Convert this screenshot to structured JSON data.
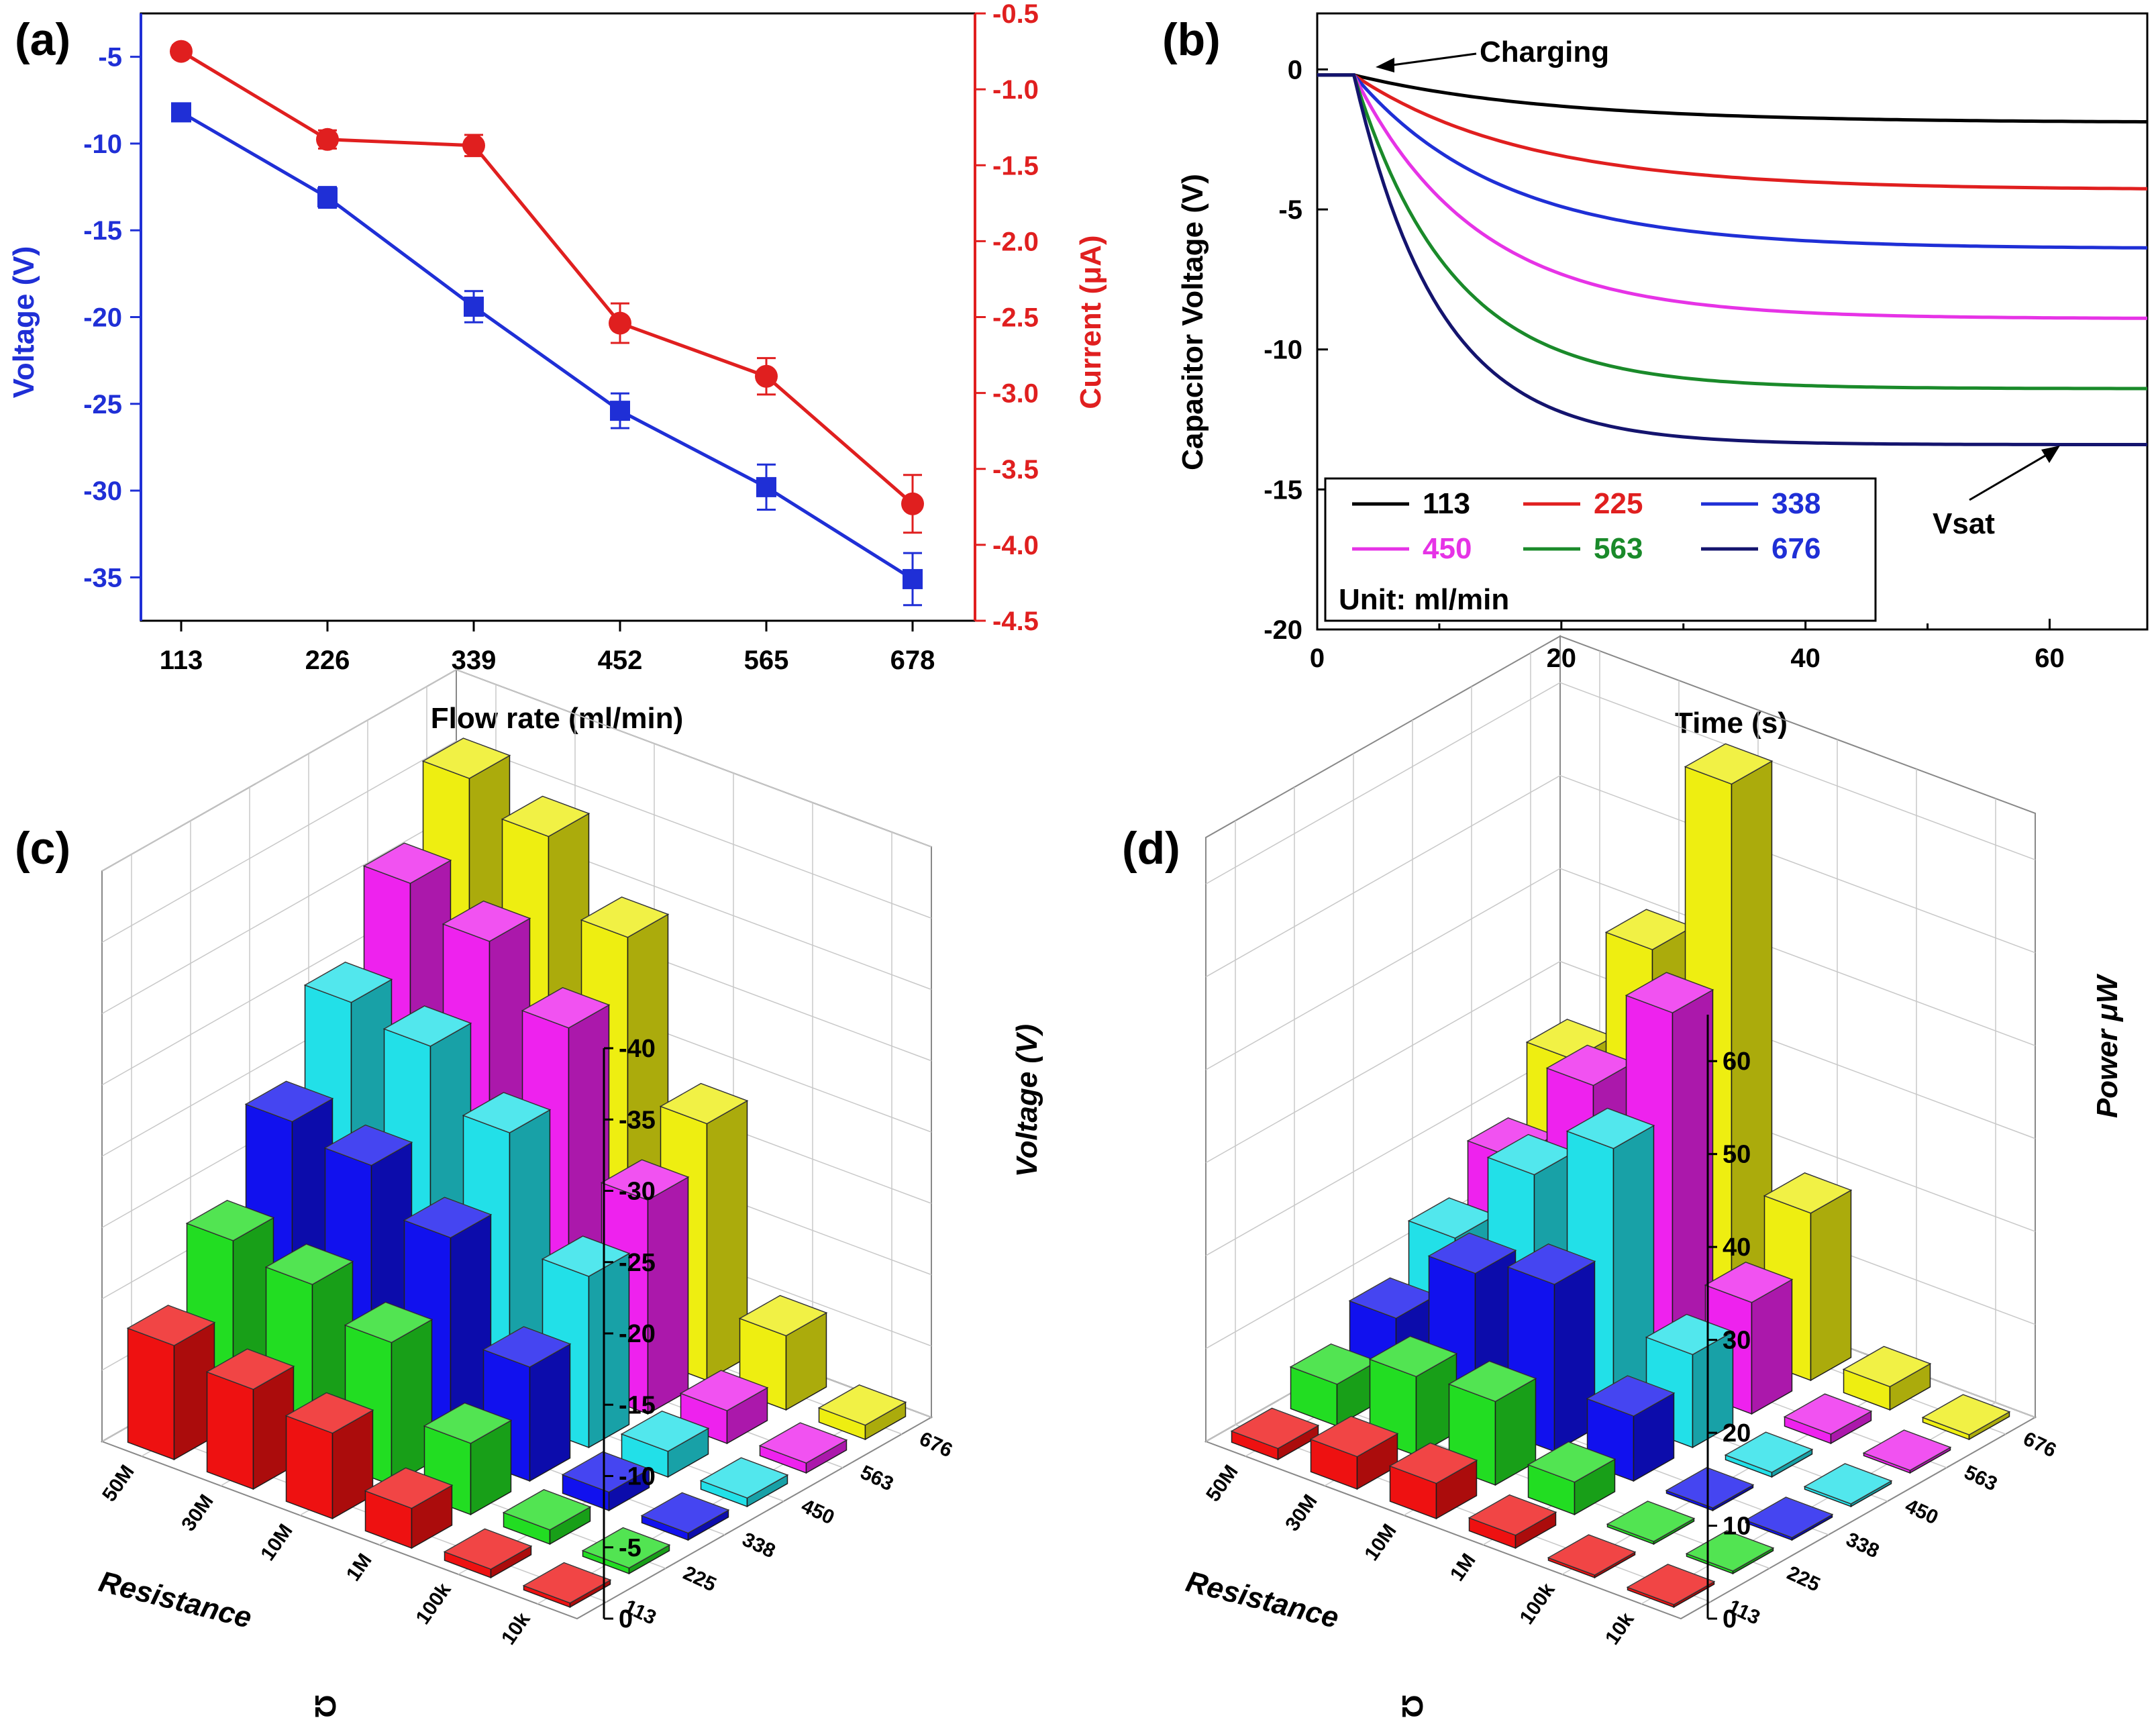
{
  "panels": {
    "a": {
      "label": "(a)",
      "chart_data": {
        "type": "line",
        "categories": [
          "113",
          "226",
          "339",
          "452",
          "565",
          "678"
        ],
        "xlabel": "Flow rate (ml/min)",
        "ylabel": "Voltage (V)",
        "y2label": "Current (μA)",
        "ylim": [
          -37.5,
          -2.5
        ],
        "y2lim": [
          -4.5,
          -0.5
        ],
        "yticks": [
          -5,
          -10,
          -15,
          -20,
          -25,
          -30,
          -35
        ],
        "y2ticks": [
          -0.5,
          -1.0,
          -1.5,
          -2.0,
          -2.5,
          -3.0,
          -3.5,
          -4.0,
          -4.5
        ],
        "series": [
          {
            "axis": "left",
            "marker": "square",
            "color": "#1f2fd6",
            "values": [
              -8.2,
              -13.1,
              -19.4,
              -25.4,
              -29.8,
              -35.1
            ],
            "errors": [
              0.3,
              0.6,
              0.9,
              1.0,
              1.3,
              1.5
            ]
          },
          {
            "axis": "right",
            "marker": "circle",
            "color": "#e01f1f",
            "values": [
              -0.75,
              -1.33,
              -1.37,
              -2.54,
              -2.89,
              -3.73
            ],
            "errors": [
              0.04,
              0.06,
              0.07,
              0.13,
              0.12,
              0.19
            ]
          }
        ]
      }
    },
    "b": {
      "label": "(b)",
      "chart_data": {
        "type": "line",
        "xlabel": "Time (s)",
        "ylabel": "Capacitor Voltage (V)",
        "xlim": [
          0,
          68
        ],
        "ylim": [
          -20,
          2
        ],
        "xticks": [
          0,
          20,
          40,
          60
        ],
        "yticks": [
          0,
          -5,
          -10,
          -15,
          -20
        ],
        "charge_start": 3,
        "series": [
          {
            "name": "113",
            "color": "#000000",
            "vsat": -1.9,
            "tau": 16
          },
          {
            "name": "225",
            "color": "#e01f1f",
            "vsat": -4.3,
            "tau": 14
          },
          {
            "name": "338",
            "color": "#1f2fd6",
            "vsat": -6.4,
            "tau": 12
          },
          {
            "name": "450",
            "color": "#e633e6",
            "vsat": -8.9,
            "tau": 10
          },
          {
            "name": "563",
            "color": "#1a8a2a",
            "vsat": -11.4,
            "tau": 8
          },
          {
            "name": "676",
            "color": "#14146e",
            "vsat": -13.4,
            "tau": 7
          }
        ],
        "legend_unit": "Unit: ml/min",
        "annotations": [
          "Charging",
          "Vsat"
        ]
      }
    },
    "c": {
      "label": "(c)",
      "chart_data": {
        "type": "bar3d",
        "xlabel": "Resistance",
        "xunit": "Ω",
        "zlabel": "Voltage (V)",
        "resistance": [
          "50M",
          "30M",
          "10M",
          "1M",
          "100k",
          "10k"
        ],
        "flow": [
          "113",
          "225",
          "338",
          "450",
          "563",
          "676"
        ],
        "zticks": [
          "0",
          "-5",
          "-10",
          "-15",
          "-20",
          "-25",
          "-30",
          "-35",
          "-40"
        ],
        "zmax": 40,
        "values": [
          [
            8,
            13,
            19,
            25,
            31,
            36
          ],
          [
            7,
            12,
            18,
            24,
            29,
            34
          ],
          [
            6,
            10,
            15,
            20,
            25,
            29
          ],
          [
            2.8,
            5,
            8,
            12,
            15,
            18
          ],
          [
            0.6,
            1.0,
            1.3,
            1.8,
            2.3,
            5.2
          ],
          [
            0.3,
            0.4,
            0.5,
            0.6,
            0.7,
            1.0
          ]
        ],
        "colors": [
          "#ee1111",
          "#22dd22",
          "#1111ee",
          "#22e0e8",
          "#ee22ee",
          "#eeee11"
        ]
      }
    },
    "d": {
      "label": "(d)",
      "chart_data": {
        "type": "bar3d",
        "xlabel": "Resistance",
        "xunit": "Ω",
        "zlabel": "Power  μW",
        "resistance": [
          "50M",
          "30M",
          "10M",
          "1M",
          "100k",
          "10k"
        ],
        "flow": [
          "113",
          "225",
          "338",
          "450",
          "563",
          "676"
        ],
        "zticks": [
          "0",
          "10",
          "20",
          "30",
          "40",
          "50",
          "60"
        ],
        "zmax": 65,
        "values": [
          [
            1.2,
            4.5,
            8,
            13,
            18,
            25
          ],
          [
            3.5,
            8.5,
            16,
            23,
            29,
            40
          ],
          [
            3.8,
            9,
            18,
            29,
            40,
            61
          ],
          [
            1.4,
            3.5,
            7,
            10,
            12,
            18
          ],
          [
            0.1,
            0.2,
            0.3,
            0.5,
            1.0,
            2.5
          ],
          [
            0.05,
            0.1,
            0.1,
            0.15,
            0.2,
            0.5
          ]
        ],
        "colors": [
          "#ee1111",
          "#22dd22",
          "#1111ee",
          "#22e0e8",
          "#ee22ee",
          "#eeee11"
        ]
      }
    }
  }
}
